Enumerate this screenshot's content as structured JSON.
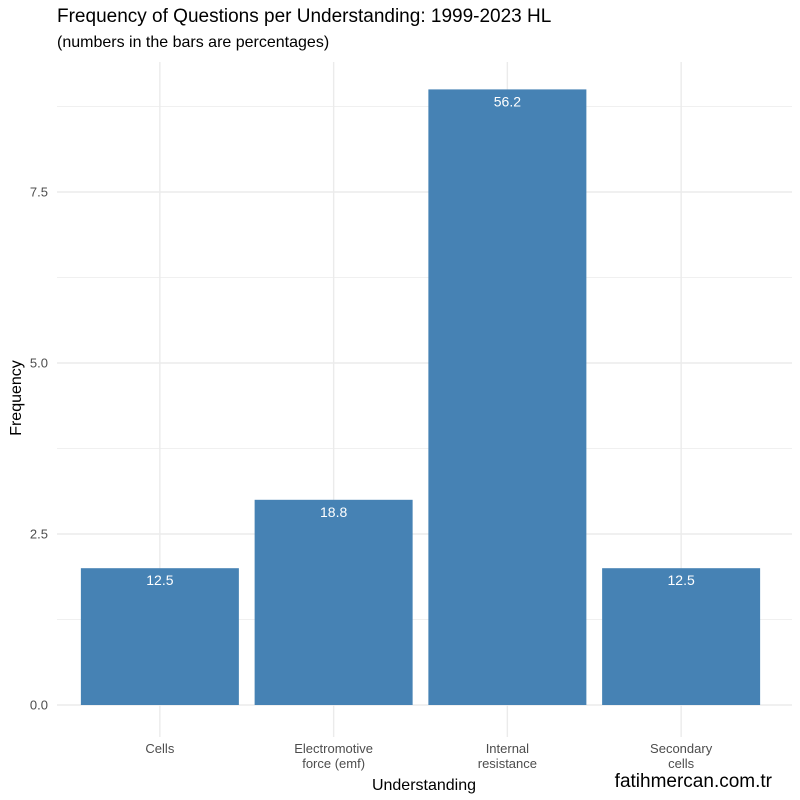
{
  "title": "Frequency of Questions per Understanding: 1999-2023 HL",
  "subtitle": "(numbers in the bars are percentages)",
  "watermark": "fatihmercan.com.tr",
  "colors": {
    "bar": "#4682b4",
    "grid": "#ebebeb",
    "bar_label": "#ffffff",
    "tick": "#4d4d4d"
  },
  "chart_data": {
    "type": "bar",
    "xlabel": "Understanding",
    "ylabel": "Frequency",
    "ylim": [
      0,
      9.45
    ],
    "yticks": [
      0.0,
      2.5,
      5.0,
      7.5
    ],
    "ytick_labels": [
      "0.0",
      "2.5",
      "5.0",
      "7.5"
    ],
    "grid": true,
    "categories": [
      [
        "Cells"
      ],
      [
        "Electromotive",
        "force (emf)"
      ],
      [
        "Internal",
        "resistance"
      ],
      [
        "Secondary",
        "cells"
      ]
    ],
    "values": [
      2,
      3,
      9,
      2
    ],
    "bar_labels": [
      "12.5",
      "18.8",
      "56.2",
      "12.5"
    ]
  }
}
